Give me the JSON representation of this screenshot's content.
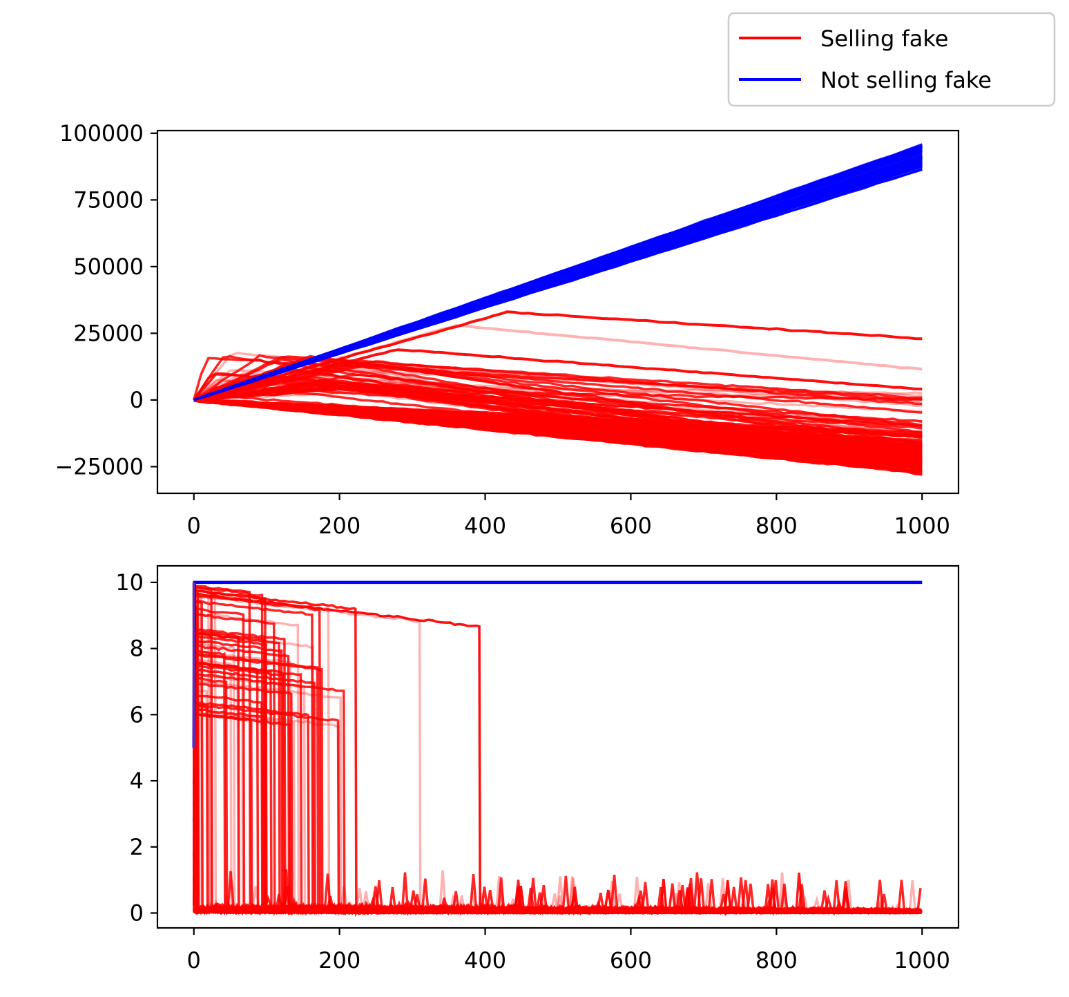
{
  "legend": {
    "placement": "top-right, above plots",
    "items": [
      {
        "label": "Selling fake",
        "color": "#ff0000"
      },
      {
        "label": "Not selling fake",
        "color": "#0000ff"
      }
    ]
  },
  "chart_data": [
    {
      "type": "line",
      "panel": "top",
      "x_ticks": [
        0,
        200,
        400,
        600,
        800,
        1000
      ],
      "y_ticks": [
        -25000,
        0,
        25000,
        50000,
        75000,
        100000
      ],
      "y_tick_labels": [
        "−25000",
        "0",
        "25000",
        "50000",
        "75000",
        "100000"
      ],
      "xlim": [
        -50,
        1050
      ],
      "ylim": [
        -35000,
        101000
      ],
      "grid": false,
      "series": [
        {
          "name": "Not selling fake",
          "color": "#0000ff",
          "count": 50,
          "description": "all lines grow linearly from 0 at x=0",
          "end_range": [
            86000,
            96000
          ]
        },
        {
          "name": "Selling fake",
          "color": "#ff0000",
          "count": 50,
          "highlighted_lines": [
            {
              "peak_x": 430,
              "peak_y": 33000,
              "end_y": 23000
            },
            {
              "peak_x": 360,
              "peak_y": 28000,
              "end_y": 11500,
              "faded": true
            },
            {
              "peak_x": 280,
              "peak_y": 19000,
              "end_y": 4000
            }
          ],
          "end_range": [
            -29000,
            4000
          ]
        }
      ]
    },
    {
      "type": "line",
      "panel": "bottom",
      "x_ticks": [
        0,
        200,
        400,
        600,
        800,
        1000
      ],
      "y_ticks": [
        0,
        2,
        4,
        6,
        8,
        10
      ],
      "y_tick_labels": [
        "0",
        "2",
        "4",
        "6",
        "8",
        "10"
      ],
      "xlim": [
        -50,
        1050
      ],
      "ylim": [
        -0.45,
        10.5
      ],
      "grid": false,
      "series": [
        {
          "name": "Not selling fake",
          "color": "#0000ff",
          "constant_value": 10,
          "start_value": 5
        },
        {
          "name": "Selling fake",
          "color": "#ff0000",
          "description": "values start near 10 and drop to near 0; last drop at x≈392 from 9.65",
          "steady_range": [
            0,
            1
          ]
        }
      ]
    }
  ]
}
